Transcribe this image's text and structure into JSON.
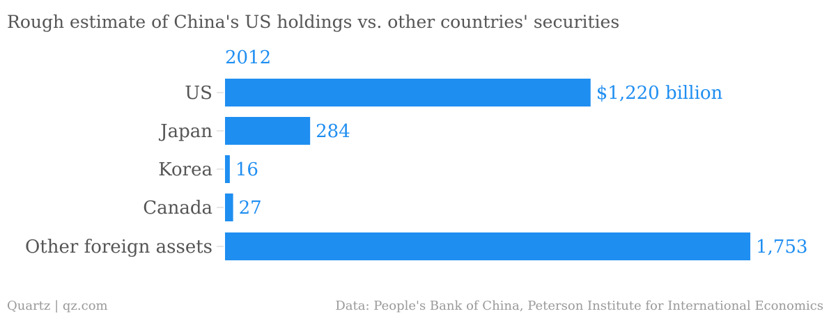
{
  "chart_data": {
    "type": "bar",
    "orientation": "horizontal",
    "title": "Rough estimate of China's US holdings vs. other countries' securities",
    "series": [
      {
        "name": "2012",
        "values": [
          1220,
          284,
          16,
          27,
          1753
        ],
        "value_labels": [
          "$1,220 billion",
          "284",
          "16",
          "27",
          "1,753"
        ]
      }
    ],
    "categories": [
      "US",
      "Japan",
      "Korea",
      "Canada",
      "Other foreign assets"
    ],
    "xlim": [
      0,
      1753
    ],
    "grid": false,
    "legend": "top-left",
    "color": "#1f8ef1"
  },
  "footer": {
    "credit": "Quartz | qz.com",
    "source": "Data: People's Bank of China, Peterson Institute for International Economics"
  },
  "colors": {
    "bar": "#1f8ef1",
    "text": "#555555",
    "muted": "#999999"
  }
}
